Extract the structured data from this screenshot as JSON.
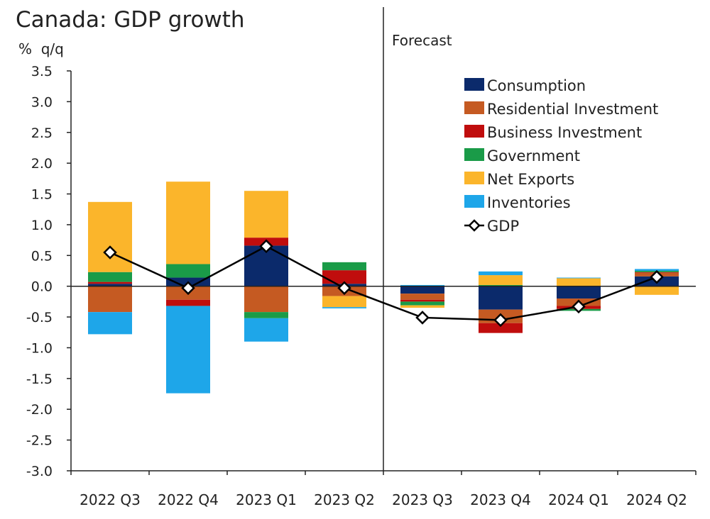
{
  "chart_data": {
    "type": "bar",
    "stacked": true,
    "title": "Canada: GDP growth",
    "ylabel": "%  q/q",
    "ylim": [
      -3.0,
      3.5
    ],
    "yticks": [
      "3.5",
      "3.0",
      "2.5",
      "2.0",
      "1.5",
      "1.0",
      "0.5",
      "0.0",
      "-0.5",
      "-1.0",
      "-1.5",
      "-2.0",
      "-2.5",
      "-3.0"
    ],
    "ytick_values": [
      3.5,
      3.0,
      2.5,
      2.0,
      1.5,
      1.0,
      0.5,
      0.0,
      -0.5,
      -1.0,
      -1.5,
      -2.0,
      -2.5,
      -3.0
    ],
    "categories": [
      "2022 Q3",
      "2022 Q4",
      "2023 Q1",
      "2023 Q2",
      "2023 Q3",
      "2023 Q4",
      "2024 Q1",
      "2024 Q2"
    ],
    "forecast_label": "Forecast",
    "forecast_start_index": 4,
    "series": [
      {
        "name": "Consumption",
        "color": "#0b2a6b",
        "values": [
          0.04,
          0.14,
          0.66,
          0.04,
          -0.12,
          -0.38,
          -0.2,
          0.16
        ]
      },
      {
        "name": "Residential Investment",
        "color": "#c55a22",
        "values": [
          -0.42,
          -0.22,
          -0.42,
          -0.16,
          -0.1,
          -0.22,
          -0.12,
          0.06
        ]
      },
      {
        "name": "Business Investment",
        "color": "#c00d0d",
        "values": [
          0.03,
          -0.1,
          0.13,
          0.22,
          -0.03,
          -0.16,
          -0.05,
          0.01
        ]
      },
      {
        "name": "Government",
        "color": "#1a9b48",
        "values": [
          0.16,
          0.22,
          -0.1,
          0.13,
          -0.06,
          0.02,
          -0.03,
          0.02
        ]
      },
      {
        "name": "Net Exports",
        "color": "#fbb52b",
        "values": [
          1.14,
          1.34,
          0.76,
          -0.18,
          -0.04,
          0.16,
          0.13,
          -0.14
        ]
      },
      {
        "name": "Inventories",
        "color": "#1ea6e9",
        "values": [
          -0.36,
          -1.42,
          -0.38,
          -0.02,
          0.02,
          0.06,
          0.01,
          0.03
        ]
      }
    ],
    "line_series": {
      "name": "GDP",
      "color": "#000000",
      "marker": "diamond",
      "values": [
        0.55,
        -0.03,
        0.65,
        -0.03,
        -0.51,
        -0.55,
        -0.33,
        0.15
      ]
    },
    "legend_position": "top-right"
  }
}
